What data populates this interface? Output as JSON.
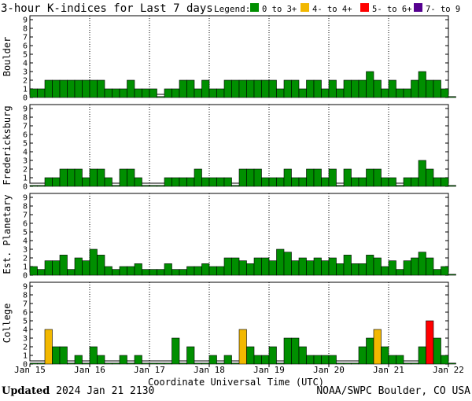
{
  "title": "3-hour K-indices for Last 7 days",
  "legend": {
    "label": "Legend:",
    "items": [
      {
        "label": "0 to 3+",
        "color": "#008f00"
      },
      {
        "label": "4- to 4+",
        "color": "#f2b800"
      },
      {
        "label": "5- to 6+",
        "color": "#ff0000"
      },
      {
        "label": "7- to 9",
        "color": "#55008f"
      }
    ]
  },
  "footer": {
    "updated_label": "Updated",
    "updated_value": "2024 Jan 21 2130",
    "source": "NOAA/SWPC Boulder, CO USA"
  },
  "chart_data": {
    "type": "bar",
    "xlabel": "Coordinate Universal Time (UTC)",
    "x_ticks": [
      "Jan 15",
      "Jan 16",
      "Jan 17",
      "Jan 18",
      "Jan 19",
      "Jan 20",
      "Jan 21",
      "Jan 22"
    ],
    "ylim": [
      0,
      9
    ],
    "y_ticks": [
      0,
      1,
      2,
      3,
      4,
      5,
      6,
      7,
      8,
      9
    ],
    "bars_per_day": 8,
    "panels": [
      {
        "name": "Boulder",
        "values": [
          1,
          1,
          2,
          2,
          2,
          2,
          2,
          2,
          2,
          2,
          1,
          1,
          1,
          2,
          1,
          1,
          1,
          0,
          1,
          1,
          2,
          2,
          1,
          2,
          1,
          1,
          2,
          2,
          2,
          2,
          2,
          2,
          2,
          1,
          2,
          2,
          1,
          2,
          2,
          1,
          2,
          1,
          2,
          2,
          2,
          3,
          2,
          1,
          2,
          1,
          1,
          2,
          3,
          2,
          2,
          1,
          0
        ]
      },
      {
        "name": "Fredericksburg",
        "values": [
          0,
          0,
          1,
          1,
          2,
          2,
          2,
          1,
          2,
          2,
          1,
          0,
          2,
          2,
          1,
          0,
          0,
          0,
          1,
          1,
          1,
          1,
          2,
          1,
          1,
          1,
          1,
          0,
          2,
          2,
          2,
          1,
          1,
          1,
          2,
          1,
          1,
          2,
          2,
          1,
          2,
          0,
          2,
          1,
          1,
          2,
          2,
          1,
          1,
          0,
          1,
          1,
          3,
          2,
          1,
          1,
          0
        ]
      },
      {
        "name": "Est. Planetary",
        "values": [
          1,
          0.67,
          1.67,
          1.67,
          2.33,
          0.67,
          2,
          1.67,
          3,
          2.33,
          1,
          0.67,
          1,
          1,
          1.33,
          0.67,
          0.67,
          0.67,
          1.33,
          0.67,
          0.67,
          1,
          1,
          1.33,
          1,
          1,
          2,
          2,
          1.67,
          1.33,
          2,
          2,
          1.67,
          3,
          2.67,
          1.67,
          2,
          1.67,
          2,
          1.67,
          2,
          1.33,
          2.33,
          1.33,
          1.33,
          2.33,
          2,
          1,
          1.67,
          0.67,
          1.67,
          2,
          2.67,
          2,
          0.67,
          1,
          0
        ]
      },
      {
        "name": "College",
        "values": [
          0,
          0,
          4,
          2,
          2,
          0,
          1,
          0,
          2,
          1,
          0,
          0,
          1,
          0,
          1,
          0,
          0,
          0,
          0,
          3,
          0,
          2,
          0,
          0,
          1,
          0,
          1,
          0,
          4,
          2,
          1,
          1,
          2,
          0,
          3,
          3,
          2,
          1,
          1,
          1,
          1,
          0,
          0,
          0,
          2,
          3,
          4,
          2,
          1,
          1,
          0,
          0,
          2,
          5,
          3,
          1,
          0
        ]
      }
    ]
  }
}
